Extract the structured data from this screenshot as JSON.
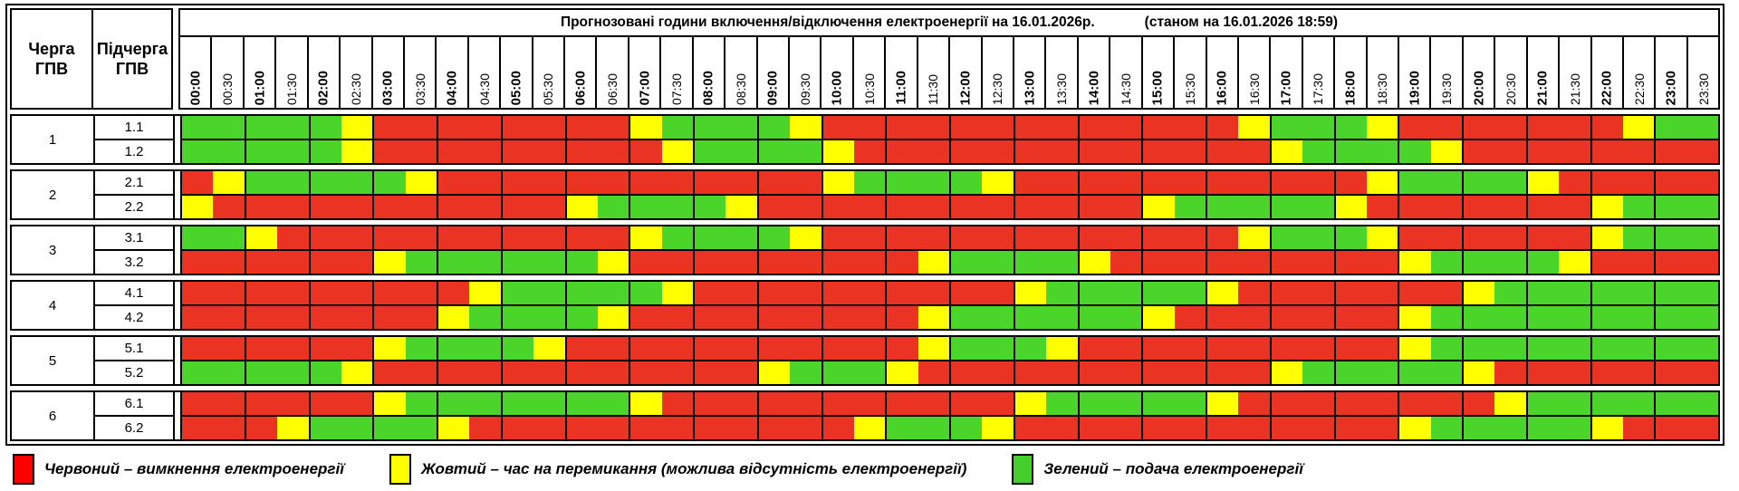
{
  "left_header": {
    "col1": "Черга\nГПВ",
    "col2": "Підчерга\nГПВ"
  },
  "title": {
    "main": "Прогнозовані години включення/відключення електроенергії на 16.01.2026р.",
    "note": "(станом на 16.01.2026 18:59)"
  },
  "legend": {
    "items": [
      {
        "color": "#ff0000",
        "label": "Червоний – вимкнення електроенергії"
      },
      {
        "color": "#ffff00",
        "label": "Жовтий – час на перемикання (можлива відсутність електроенергії)"
      },
      {
        "color": "#44cf2c",
        "label": "Зелений – подача електроенергії"
      }
    ]
  },
  "chart_data": {
    "type": "heatmap",
    "title": "Прогнозовані години включення/відключення електроенергії на 16.01.2026р.",
    "as_of": "станом на 16.01.2026 18:59",
    "x_labels": [
      "00:00",
      "00:30",
      "01:00",
      "01:30",
      "02:00",
      "02:30",
      "03:00",
      "03:30",
      "04:00",
      "04:30",
      "05:00",
      "05:30",
      "06:00",
      "06:30",
      "07:00",
      "07:30",
      "08:00",
      "08:30",
      "09:00",
      "09:30",
      "10:00",
      "10:30",
      "11:00",
      "11:30",
      "12:00",
      "12:30",
      "13:00",
      "13:30",
      "14:00",
      "14:30",
      "15:00",
      "15:30",
      "16:00",
      "16:30",
      "17:00",
      "17:30",
      "18:00",
      "18:30",
      "19:00",
      "19:30",
      "20:00",
      "20:30",
      "21:00",
      "21:30",
      "22:00",
      "22:30",
      "23:00",
      "23:30"
    ],
    "colors": {
      "R": "#ea3323",
      "Y": "#ffff00",
      "G": "#4bd52a"
    },
    "states_legend": {
      "R": "вимкнення електроенергії",
      "Y": "час на перемикання (можлива відсутність електроенергії)",
      "G": "подача електроенергії"
    },
    "groups": [
      {
        "queue": "1",
        "rows": [
          {
            "label": "1.1",
            "states": "GGGGGYRRRRRRRRYGGGGYRRRRRRRRRRRRRYGGGYRRRRRRRYGG"
          },
          {
            "label": "1.2",
            "states": "GGGGGYRRRRRRRRRYGGGGYRRRRRRRRRRRRRYGGGGYRRRRRRRR"
          }
        ]
      },
      {
        "queue": "2",
        "rows": [
          {
            "label": "2.1",
            "states": "RYGGGGGYRRRRRRRRRRRRYGGGGYRRRRRRRRRRRYGGGGYRRRRR"
          },
          {
            "label": "2.2",
            "states": "YRRRRRRRRRRRYGGGGYRRRRRRRRRRRRYGGGGGYRRRRRRRYGGG"
          }
        ]
      },
      {
        "queue": "3",
        "rows": [
          {
            "label": "3.1",
            "states": "GGYRRRRRRRRRRRYGGGGYRRRRRRRRRRRRRYGGGYRRRRRRYGGG"
          },
          {
            "label": "3.2",
            "states": "RRRRRRYGGGGGGYRRRRRRRRRYGGGGYRRRRRRRRRYGGGGYRRRR"
          }
        ]
      },
      {
        "queue": "4",
        "rows": [
          {
            "label": "4.1",
            "states": "RRRRRRRRRYGGGGGYRRRRRRRRRRYGGGGGYRRRRRRRYGGGGGGG"
          },
          {
            "label": "4.2",
            "states": "RRRRRRRRYGGGGYRRRRRRRRRYGGGGGGYRRRRRRRYGGGGGGGGG"
          }
        ]
      },
      {
        "queue": "5",
        "rows": [
          {
            "label": "5.1",
            "states": "RRRRRRYGGGGYRRRRRRRRRRRYGGGYRRRRRRRRRRYGGGGGGGGG"
          },
          {
            "label": "5.2",
            "states": "GGGGGYRRRRRRRRRRRRYGGGYRRRRRRRRRRRYGGGGGYRRRRRRR"
          }
        ]
      },
      {
        "queue": "6",
        "rows": [
          {
            "label": "6.1",
            "states": "RRRRRRYGGGGGGGYRRRRRRRRRRRYGGGGGYRRRRRRRRYGGGGGG"
          },
          {
            "label": "6.2",
            "states": "RRRYGGGGYRRRRRRRRRRRRYGGGYRRRRRRRRRRRRYGGGGGYRRR"
          }
        ]
      }
    ]
  }
}
